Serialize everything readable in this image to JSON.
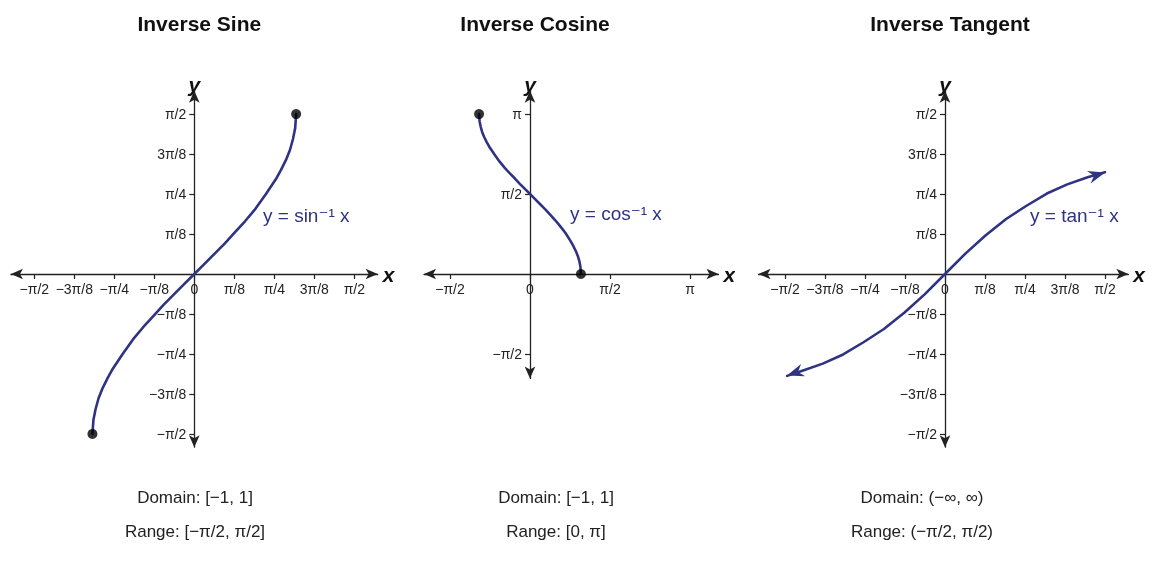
{
  "chart_data": [
    {
      "type": "line",
      "title": "Inverse Sine",
      "xlabel": "x",
      "ylabel": "y",
      "xlim": [
        -1.8,
        1.8
      ],
      "ylim": [
        -1.7,
        1.8
      ],
      "xticks": [
        {
          "value": -1.5708,
          "label": "−π/2"
        },
        {
          "value": -1.1781,
          "label": "−3π/8"
        },
        {
          "value": -0.7854,
          "label": "−π/4"
        },
        {
          "value": -0.3927,
          "label": "−π/8"
        },
        {
          "value": 0,
          "label": "0"
        },
        {
          "value": 0.3927,
          "label": "π/8"
        },
        {
          "value": 0.7854,
          "label": "π/4"
        },
        {
          "value": 1.1781,
          "label": "3π/8"
        },
        {
          "value": 1.5708,
          "label": "π/2"
        }
      ],
      "yticks": [
        {
          "value": -1.5708,
          "label": "−π/2"
        },
        {
          "value": -1.1781,
          "label": "−3π/8"
        },
        {
          "value": -0.7854,
          "label": "−π/4"
        },
        {
          "value": -0.3927,
          "label": "−π/8"
        },
        {
          "value": 0.3927,
          "label": "π/8"
        },
        {
          "value": 0.7854,
          "label": "π/4"
        },
        {
          "value": 1.1781,
          "label": "3π/8"
        },
        {
          "value": 1.5708,
          "label": "π/2"
        }
      ],
      "series": [
        {
          "color": "#2f3382",
          "marker": "none",
          "x": [
            -1,
            -0.99,
            -0.97,
            -0.94,
            -0.9,
            -0.85,
            -0.8,
            -0.7,
            -0.6,
            -0.5,
            -0.4,
            -0.3,
            -0.2,
            -0.1,
            0,
            0.1,
            0.2,
            0.3,
            0.4,
            0.5,
            0.6,
            0.7,
            0.8,
            0.85,
            0.9,
            0.94,
            0.97,
            0.99,
            1
          ],
          "values": [
            -1.57,
            -1.43,
            -1.33,
            -1.22,
            -1.12,
            -1.02,
            -0.93,
            -0.78,
            -0.64,
            -0.52,
            -0.41,
            -0.3,
            -0.2,
            -0.1,
            0,
            0.1,
            0.2,
            0.3,
            0.41,
            0.52,
            0.64,
            0.78,
            0.93,
            1.02,
            1.12,
            1.22,
            1.33,
            1.43,
            1.57
          ]
        },
        {
          "type": "scatter",
          "color": "#000000",
          "marker": "circle",
          "x": [
            -1,
            1
          ],
          "values": [
            -1.57,
            1.57
          ]
        }
      ],
      "annotations": [
        "y = sin⁻¹ x",
        "Domain: [−1, 1]",
        "Range: [−π/2, π/2]"
      ]
    },
    {
      "type": "line",
      "title": "Inverse Cosine",
      "xlabel": "x",
      "ylabel": "y",
      "xlim": [
        -2.08,
        3.7
      ],
      "ylim": [
        -2.05,
        3.6
      ],
      "xticks": [
        {
          "value": -1.5708,
          "label": "−π/2"
        },
        {
          "value": 0,
          "label": "0"
        },
        {
          "value": 1.5708,
          "label": "π/2"
        },
        {
          "value": 3.1416,
          "label": "π"
        }
      ],
      "yticks": [
        {
          "value": -1.5708,
          "label": "−π/2"
        },
        {
          "value": 1.5708,
          "label": "π/2"
        },
        {
          "value": 3.1416,
          "label": "π"
        }
      ],
      "series": [
        {
          "color": "#2f3382",
          "marker": "none",
          "x": [
            -1,
            -0.99,
            -0.97,
            -0.94,
            -0.9,
            -0.85,
            -0.8,
            -0.7,
            -0.6,
            -0.5,
            -0.4,
            -0.3,
            -0.2,
            -0.1,
            0,
            0.1,
            0.2,
            0.3,
            0.4,
            0.5,
            0.6,
            0.7,
            0.8,
            0.85,
            0.9,
            0.94,
            0.97,
            0.99,
            1
          ],
          "values": [
            3.14,
            3.0,
            2.9,
            2.79,
            2.69,
            2.59,
            2.5,
            2.35,
            2.21,
            2.09,
            1.98,
            1.88,
            1.77,
            1.67,
            1.57,
            1.47,
            1.37,
            1.27,
            1.16,
            1.05,
            0.93,
            0.8,
            0.64,
            0.55,
            0.45,
            0.35,
            0.25,
            0.14,
            0
          ]
        },
        {
          "type": "scatter",
          "color": "#000000",
          "marker": "circle",
          "x": [
            -1,
            1
          ],
          "values": [
            3.14,
            0
          ]
        }
      ],
      "annotations": [
        "y = cos⁻¹ x",
        "Domain: [−1, 1]",
        "Range: [0, π]"
      ]
    },
    {
      "type": "line",
      "title": "Inverse Tangent",
      "xlabel": "x",
      "ylabel": "y",
      "xlim": [
        -1.83,
        1.8
      ],
      "ylim": [
        -1.7,
        1.8
      ],
      "xticks": [
        {
          "value": -1.5708,
          "label": "−π/2"
        },
        {
          "value": -1.1781,
          "label": "−3π/8"
        },
        {
          "value": -0.7854,
          "label": "−π/4"
        },
        {
          "value": -0.3927,
          "label": "−π/8"
        },
        {
          "value": 0,
          "label": "0"
        },
        {
          "value": 0.3927,
          "label": "π/8"
        },
        {
          "value": 0.7854,
          "label": "π/4"
        },
        {
          "value": 1.1781,
          "label": "3π/8"
        },
        {
          "value": 1.5708,
          "label": "π/2"
        }
      ],
      "yticks": [
        {
          "value": -1.5708,
          "label": "−π/2"
        },
        {
          "value": -1.1781,
          "label": "−3π/8"
        },
        {
          "value": -0.7854,
          "label": "−π/4"
        },
        {
          "value": -0.3927,
          "label": "−π/8"
        },
        {
          "value": 0.3927,
          "label": "π/8"
        },
        {
          "value": 0.7854,
          "label": "π/4"
        },
        {
          "value": 1.1781,
          "label": "3π/8"
        },
        {
          "value": 1.5708,
          "label": "π/2"
        }
      ],
      "series": [
        {
          "color": "#2f3382",
          "marker": "none",
          "x": [
            -1.55,
            -1.4,
            -1.2,
            -1,
            -0.8,
            -0.6,
            -0.4,
            -0.2,
            0,
            0.2,
            0.4,
            0.6,
            0.8,
            1,
            1.2,
            1.4,
            1.57
          ],
          "values": [
            -1.0,
            -0.95,
            -0.88,
            -0.79,
            -0.67,
            -0.54,
            -0.38,
            -0.2,
            0,
            0.2,
            0.38,
            0.54,
            0.67,
            0.79,
            0.88,
            0.95,
            1.0
          ]
        }
      ],
      "annotations": [
        "y = tan⁻¹ x",
        "Domain: (−∞, ∞)",
        "Range: (−π/2, π/2)"
      ]
    }
  ]
}
